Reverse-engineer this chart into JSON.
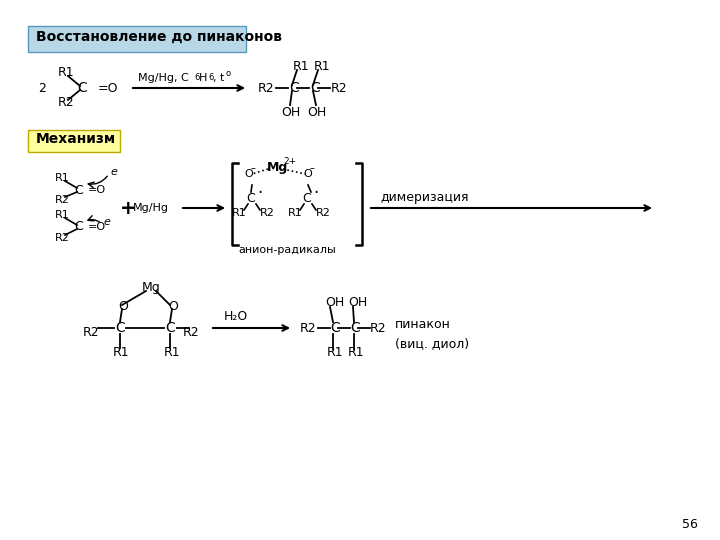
{
  "title": "Восстановление до пинаконов",
  "subtitle": "Механизм",
  "bg_color": "#ffffff",
  "title_box_color": "#b8d8e8",
  "subtitle_box_color": "#ffffa0",
  "page_number": "56"
}
